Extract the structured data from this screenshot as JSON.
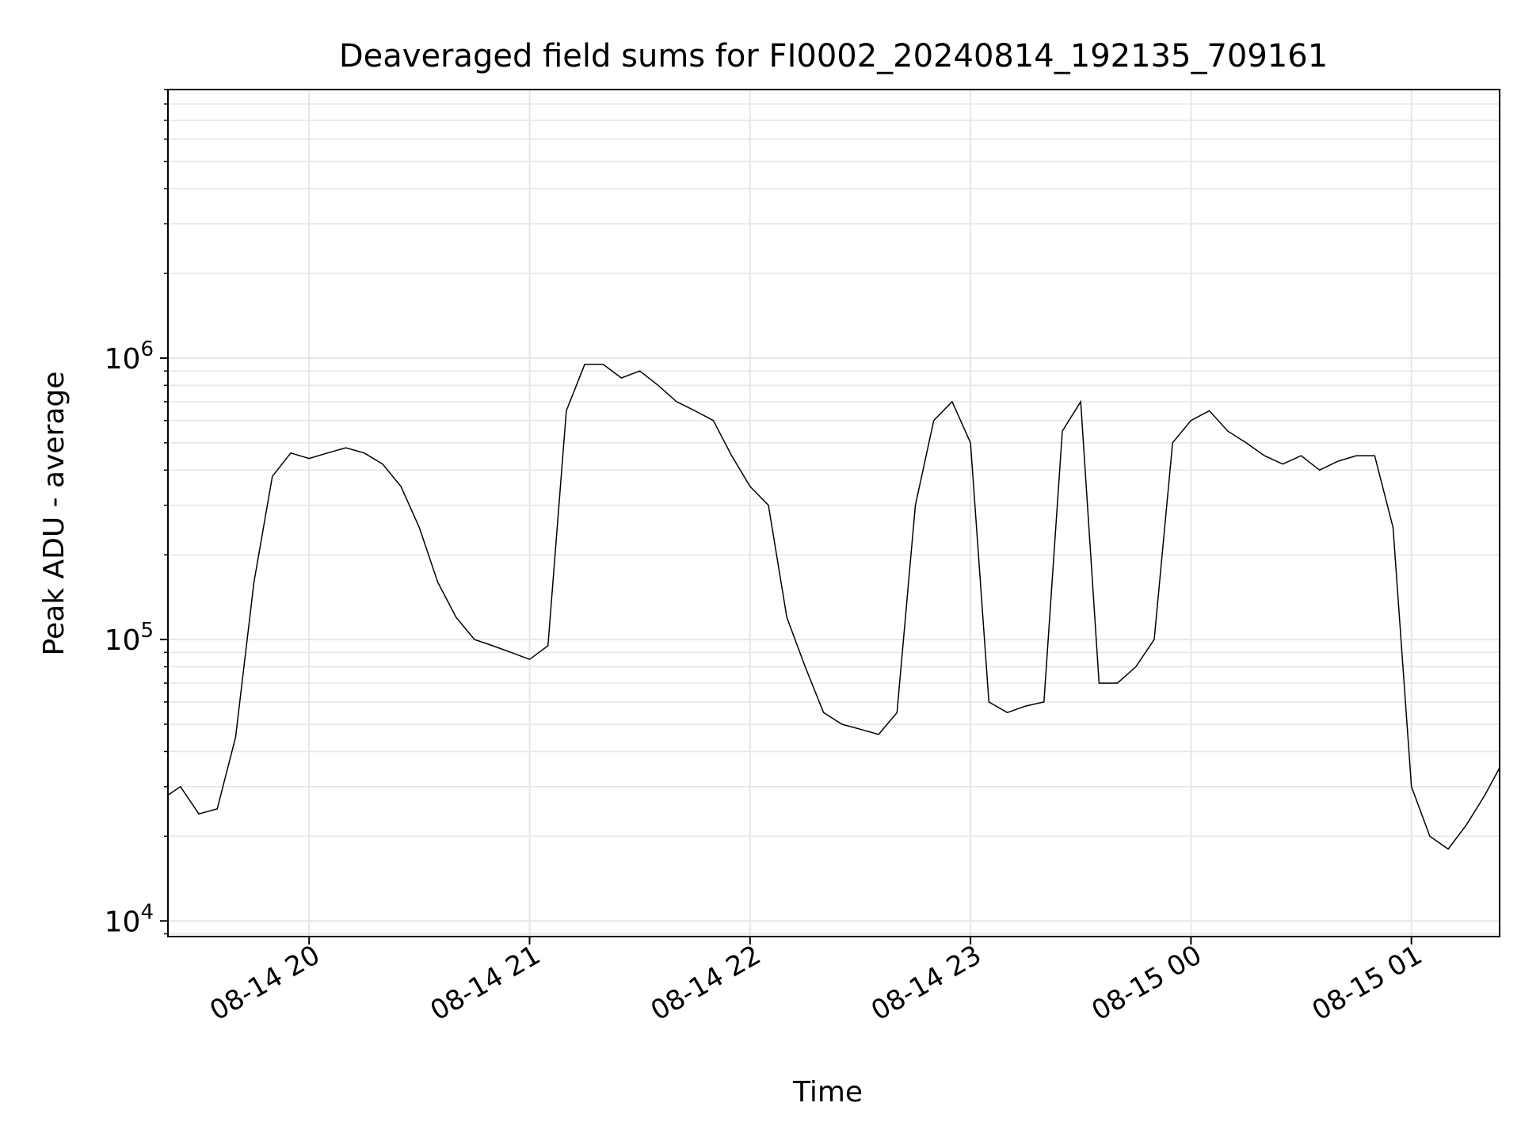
{
  "chart_data": {
    "type": "line",
    "title": "Deaveraged field sums for FI0002_20240814_192135_709161",
    "xlabel": "Time",
    "ylabel": "Peak ADU - average",
    "yscale": "log",
    "ylim": [
      8800,
      9000000
    ],
    "xlim": [
      "2024-08-14 19:21:35",
      "2024-08-15 01:24:00"
    ],
    "x_ticks": [
      "2024-08-14 20:00",
      "2024-08-14 21:00",
      "2024-08-14 22:00",
      "2024-08-14 23:00",
      "2024-08-15 00:00",
      "2024-08-15 01:00"
    ],
    "x_tick_labels": [
      "08-14 20",
      "08-14 21",
      "08-14 22",
      "08-14 23",
      "08-15 00",
      "08-15 01"
    ],
    "y_ticks": [
      10000,
      100000,
      1000000
    ],
    "y_tick_labels": [
      {
        "base": "10",
        "exp": "4"
      },
      {
        "base": "10",
        "exp": "5"
      },
      {
        "base": "10",
        "exp": "6"
      }
    ],
    "grid": true,
    "line_color": "#000000",
    "series": [
      {
        "x": [
          "2024-08-14 19:21:35",
          "2024-08-14 19:25",
          "2024-08-14 19:30",
          "2024-08-14 19:35",
          "2024-08-14 19:40",
          "2024-08-14 19:45",
          "2024-08-14 19:50",
          "2024-08-14 19:55",
          "2024-08-14 20:00",
          "2024-08-14 20:05",
          "2024-08-14 20:10",
          "2024-08-14 20:15",
          "2024-08-14 20:20",
          "2024-08-14 20:25",
          "2024-08-14 20:30",
          "2024-08-14 20:35",
          "2024-08-14 20:40",
          "2024-08-14 20:45",
          "2024-08-14 20:50",
          "2024-08-14 20:55",
          "2024-08-14 21:00",
          "2024-08-14 21:05",
          "2024-08-14 21:10",
          "2024-08-14 21:15",
          "2024-08-14 21:20",
          "2024-08-14 21:25",
          "2024-08-14 21:30",
          "2024-08-14 21:35",
          "2024-08-14 21:40",
          "2024-08-14 21:45",
          "2024-08-14 21:50",
          "2024-08-14 21:55",
          "2024-08-14 22:00",
          "2024-08-14 22:05",
          "2024-08-14 22:10",
          "2024-08-14 22:15",
          "2024-08-14 22:20",
          "2024-08-14 22:25",
          "2024-08-14 22:30",
          "2024-08-14 22:35",
          "2024-08-14 22:40",
          "2024-08-14 22:45",
          "2024-08-14 22:50",
          "2024-08-14 22:55",
          "2024-08-14 23:00",
          "2024-08-14 23:05",
          "2024-08-14 23:10",
          "2024-08-14 23:15",
          "2024-08-14 23:20",
          "2024-08-14 23:25",
          "2024-08-14 23:30",
          "2024-08-14 23:35",
          "2024-08-14 23:40",
          "2024-08-14 23:45",
          "2024-08-14 23:50",
          "2024-08-14 23:55",
          "2024-08-15 00:00",
          "2024-08-15 00:05",
          "2024-08-15 00:10",
          "2024-08-15 00:15",
          "2024-08-15 00:20",
          "2024-08-15 00:25",
          "2024-08-15 00:30",
          "2024-08-15 00:35",
          "2024-08-15 00:40",
          "2024-08-15 00:45",
          "2024-08-15 00:50",
          "2024-08-15 00:55",
          "2024-08-15 01:00",
          "2024-08-15 01:05",
          "2024-08-15 01:10",
          "2024-08-15 01:15",
          "2024-08-15 01:20",
          "2024-08-15 01:24"
        ],
        "values": [
          28000,
          30000,
          24000,
          25000,
          45000,
          160000,
          380000,
          460000,
          440000,
          460000,
          480000,
          460000,
          420000,
          350000,
          250000,
          160000,
          120000,
          100000,
          95000,
          90000,
          85000,
          95000,
          650000,
          950000,
          950000,
          850000,
          900000,
          800000,
          700000,
          650000,
          600000,
          450000,
          350000,
          300000,
          120000,
          80000,
          55000,
          50000,
          48000,
          46000,
          55000,
          300000,
          600000,
          700000,
          500000,
          60000,
          55000,
          58000,
          60000,
          550000,
          700000,
          70000,
          70000,
          80000,
          100000,
          500000,
          600000,
          650000,
          550000,
          500000,
          450000,
          420000,
          450000,
          400000,
          430000,
          450000,
          450000,
          250000,
          30000,
          20000,
          18000,
          22000,
          28000,
          35000
        ]
      }
    ]
  }
}
